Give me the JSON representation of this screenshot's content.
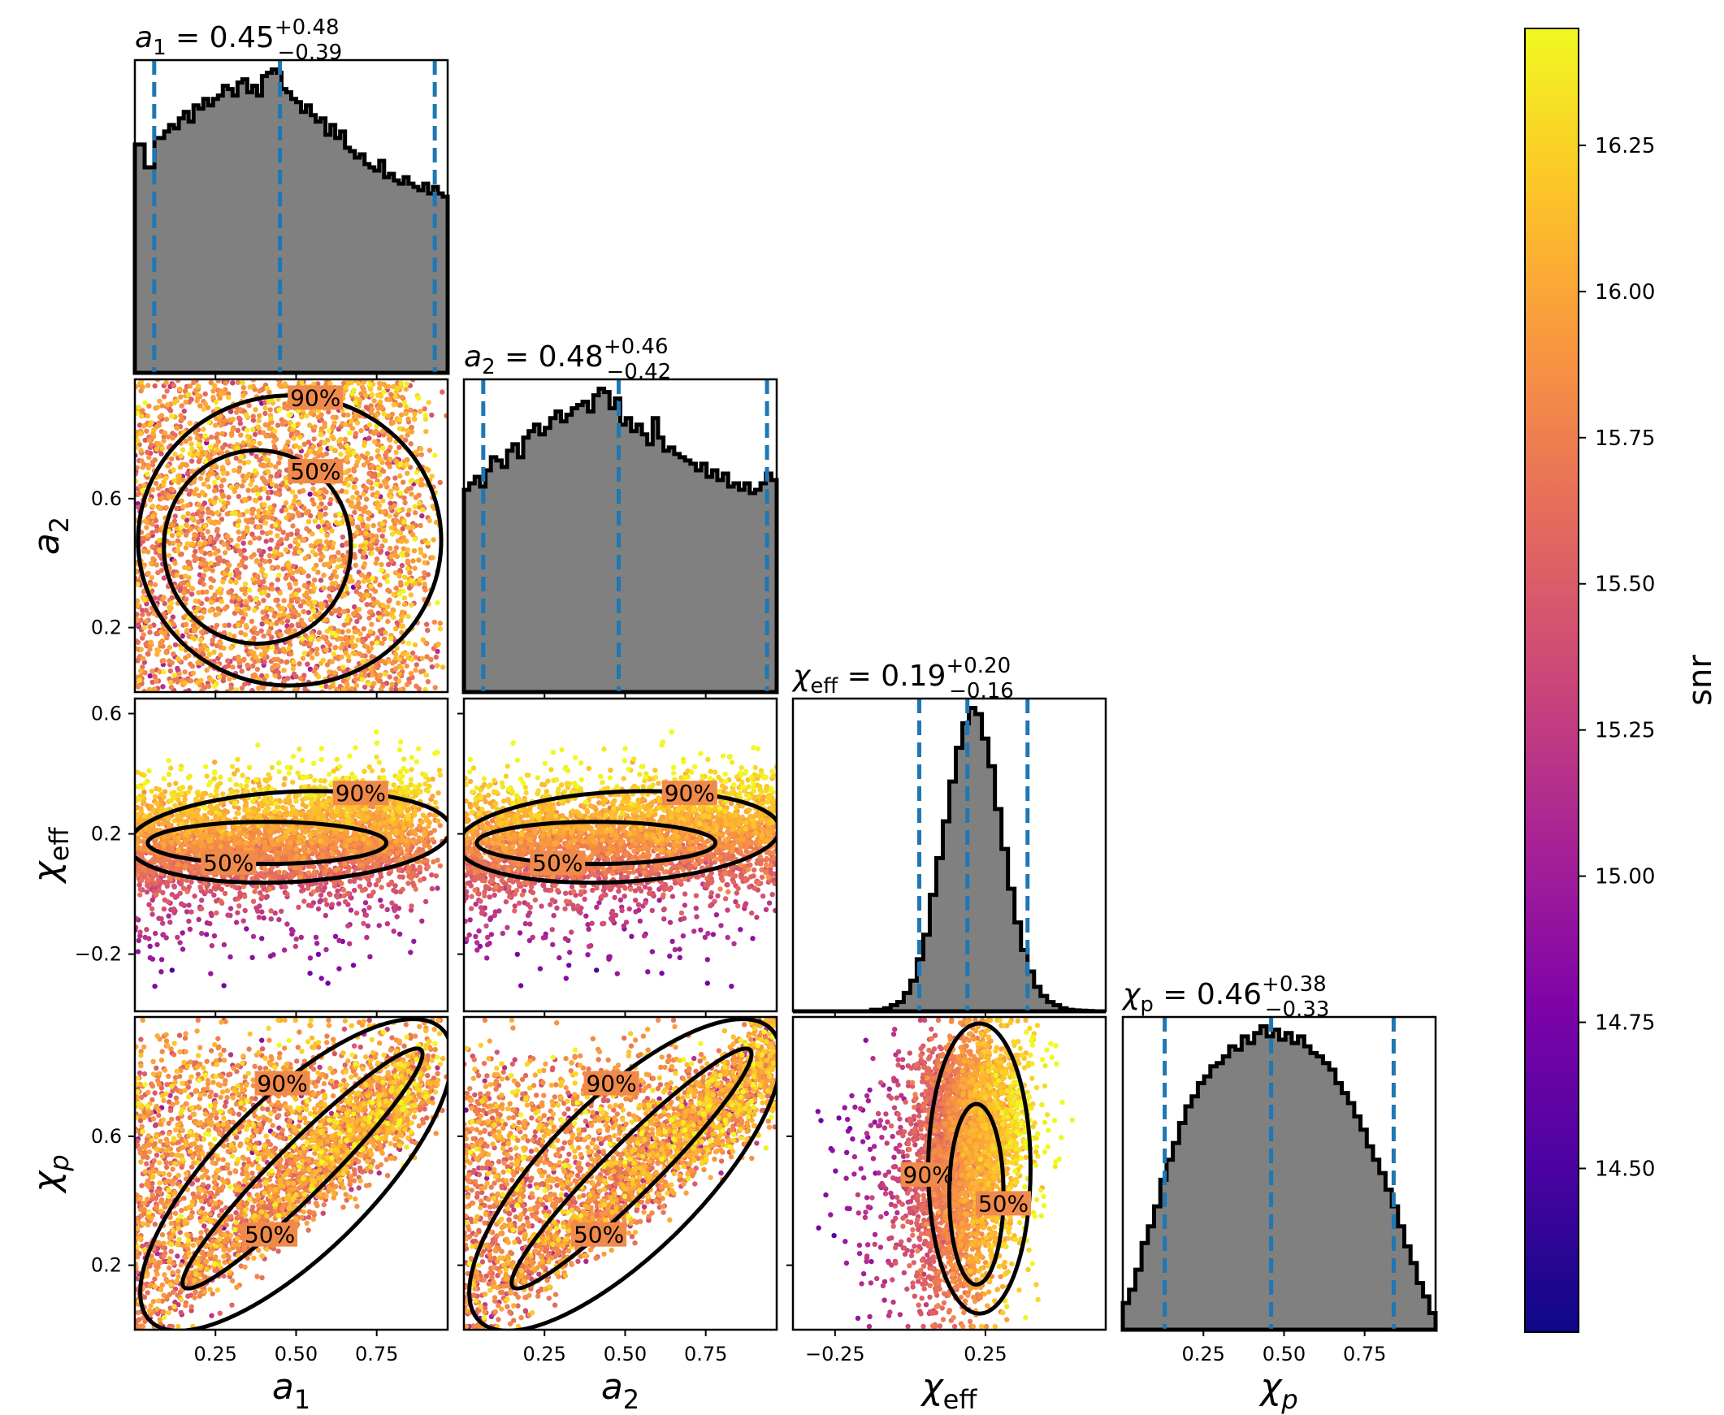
{
  "chart_data": {
    "type": "scatter",
    "kind": "corner-plot",
    "parameters": [
      {
        "name": "a_1",
        "label": "a",
        "label_sub": "1",
        "range": [
          0.0,
          0.97
        ],
        "ticks": [
          0.25,
          0.5,
          0.75
        ],
        "tick_labels": [
          "0.25",
          "0.50",
          "0.75"
        ],
        "ticks_y": [
          0.2,
          0.6
        ],
        "tick_labels_y": [
          "0.2",
          "0.6"
        ]
      },
      {
        "name": "a_2",
        "label": "a",
        "label_sub": "2",
        "range": [
          0.0,
          0.97
        ],
        "ticks": [
          0.25,
          0.5,
          0.75
        ],
        "tick_labels": [
          "0.25",
          "0.50",
          "0.75"
        ],
        "ticks_y": [
          0.2,
          0.6
        ],
        "tick_labels_y": [
          "0.2",
          "0.6"
        ]
      },
      {
        "name": "chi_eff",
        "label": "χ",
        "label_sub": "eff",
        "range": [
          -0.39,
          0.65
        ],
        "ticks": [
          -0.25,
          0.25
        ],
        "tick_labels": [
          "−0.25",
          "0.25"
        ],
        "ticks_y": [
          -0.2,
          0.2,
          0.6
        ],
        "tick_labels_y": [
          "−0.2",
          "0.2",
          "0.6"
        ]
      },
      {
        "name": "chi_p",
        "label": "χ",
        "label_sub": "p",
        "range": [
          0.0,
          0.97
        ],
        "ticks": [
          0.25,
          0.5,
          0.75
        ],
        "tick_labels": [
          "0.25",
          "0.50",
          "0.75"
        ],
        "ticks_y": [
          0.2,
          0.6
        ],
        "tick_labels_y": [
          "0.2",
          "0.6"
        ]
      }
    ],
    "titles": [
      {
        "var": "a",
        "sub": "1",
        "eq": "= 0.45",
        "plus": "+0.48",
        "minus": "−0.39",
        "median": 0.45,
        "lower": 0.06,
        "upper": 0.93
      },
      {
        "var": "a",
        "sub": "2",
        "eq": "= 0.48",
        "plus": "+0.46",
        "minus": "−0.42",
        "median": 0.48,
        "lower": 0.06,
        "upper": 0.94
      },
      {
        "var": "χ",
        "sub": "eff",
        "eq": "= 0.19",
        "plus": "+0.20",
        "minus": "−0.16",
        "median": 0.19,
        "lower": 0.03,
        "upper": 0.39
      },
      {
        "var": "χ",
        "sub": "p",
        "eq": "= 0.46",
        "plus": "+0.38",
        "minus": "−0.33",
        "median": 0.46,
        "lower": 0.13,
        "upper": 0.84
      }
    ],
    "histograms": [
      {
        "param": "a_1",
        "edges": [
          0.0,
          0.97
        ],
        "counts": [
          0.7,
          0.7,
          0.63,
          0.63,
          0.72,
          0.72,
          0.74,
          0.76,
          0.75,
          0.78,
          0.8,
          0.77,
          0.82,
          0.81,
          0.84,
          0.82,
          0.84,
          0.85,
          0.88,
          0.87,
          0.85,
          0.89,
          0.9,
          0.86,
          0.88,
          0.85,
          0.91,
          0.92,
          0.93,
          0.92,
          0.87,
          0.86,
          0.84,
          0.83,
          0.8,
          0.82,
          0.79,
          0.77,
          0.78,
          0.73,
          0.76,
          0.72,
          0.74,
          0.69,
          0.68,
          0.66,
          0.67,
          0.64,
          0.63,
          0.62,
          0.65,
          0.6,
          0.61,
          0.59,
          0.58,
          0.6,
          0.58,
          0.57,
          0.56,
          0.58,
          0.55,
          0.57,
          0.55,
          0.54
        ]
      },
      {
        "param": "a_2",
        "edges": [
          0.0,
          0.97
        ],
        "counts": [
          0.62,
          0.64,
          0.66,
          0.63,
          0.68,
          0.72,
          0.71,
          0.69,
          0.74,
          0.76,
          0.72,
          0.78,
          0.8,
          0.82,
          0.79,
          0.81,
          0.84,
          0.86,
          0.83,
          0.85,
          0.87,
          0.88,
          0.89,
          0.86,
          0.91,
          0.93,
          0.92,
          0.87,
          0.9,
          0.82,
          0.84,
          0.8,
          0.82,
          0.79,
          0.76,
          0.84,
          0.78,
          0.74,
          0.75,
          0.73,
          0.72,
          0.71,
          0.7,
          0.68,
          0.7,
          0.66,
          0.68,
          0.65,
          0.67,
          0.63,
          0.64,
          0.62,
          0.64,
          0.61,
          0.62,
          0.64,
          0.67,
          0.65
        ]
      },
      {
        "param": "chi_eff",
        "edges": [
          -0.39,
          0.65
        ],
        "counts": [
          0.0,
          0.0,
          0.0,
          0.0,
          0.0,
          0.0,
          0.0,
          0.0,
          0.0,
          0.0,
          0.0,
          0.0,
          0.005,
          0.005,
          0.01,
          0.02,
          0.03,
          0.06,
          0.1,
          0.17,
          0.25,
          0.38,
          0.5,
          0.62,
          0.75,
          0.86,
          0.94,
          0.99,
          0.97,
          0.89,
          0.8,
          0.66,
          0.53,
          0.4,
          0.29,
          0.2,
          0.13,
          0.08,
          0.05,
          0.03,
          0.02,
          0.01,
          0.005,
          0.003,
          0.002,
          0.001,
          0.0,
          0.0
        ]
      },
      {
        "param": "chi_p",
        "edges": [
          0.0,
          0.97
        ],
        "counts": [
          0.08,
          0.12,
          0.18,
          0.26,
          0.31,
          0.37,
          0.45,
          0.51,
          0.56,
          0.62,
          0.67,
          0.7,
          0.74,
          0.76,
          0.79,
          0.8,
          0.82,
          0.85,
          0.84,
          0.88,
          0.86,
          0.89,
          0.91,
          0.88,
          0.9,
          0.87,
          0.89,
          0.86,
          0.88,
          0.85,
          0.83,
          0.82,
          0.8,
          0.78,
          0.74,
          0.71,
          0.68,
          0.64,
          0.6,
          0.55,
          0.51,
          0.47,
          0.42,
          0.37,
          0.31,
          0.25,
          0.2,
          0.14,
          0.1,
          0.05
        ]
      }
    ],
    "contour_labels": [
      "50%",
      "90%"
    ],
    "colorbar": {
      "label": "snr",
      "colormap": "plasma",
      "range": [
        14.22,
        16.45
      ],
      "ticks": [
        14.5,
        14.75,
        15.0,
        15.25,
        15.5,
        15.75,
        16.0,
        16.25
      ],
      "tick_labels": [
        "14.50",
        "14.75",
        "15.00",
        "15.25",
        "15.50",
        "15.75",
        "16.00",
        "16.25"
      ]
    },
    "colors": {
      "median_lines": "#1f77b4",
      "histogram_fill": "#808080",
      "histogram_edge": "#000000",
      "contour": "#000000"
    },
    "legend": "none",
    "grid": false
  }
}
